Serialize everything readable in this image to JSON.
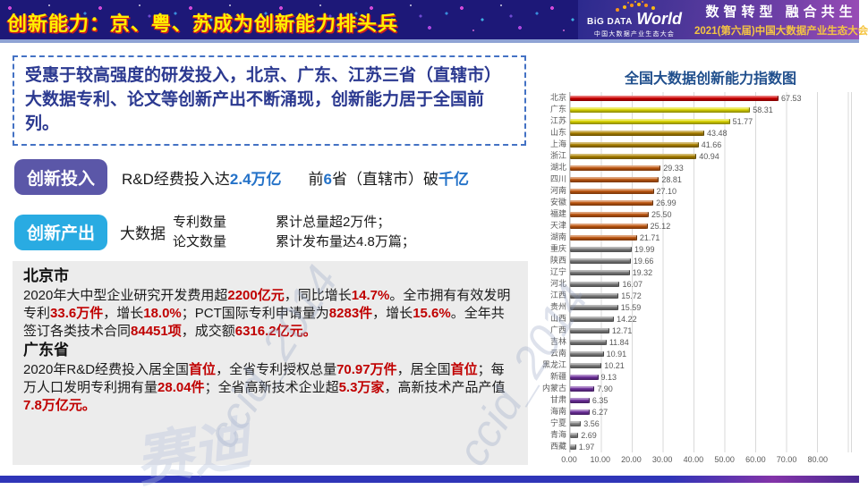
{
  "header": {
    "title": "创新能力：京、粤、苏成为创新能力排头兵",
    "logo": {
      "big": "BiG DATA",
      "world": "World",
      "sub": "中国大数据产业生态大会"
    },
    "slogan": "数智转型 融合共生",
    "event": "2021(第六届)中国大数据产业生态大会"
  },
  "intro": "受惠于较高强度的研发投入，北京、广东、江苏三省（直辖市）大数据专利、论文等创新产出不断涌现，创新能力居于全国前列。",
  "invest": {
    "badge": "创新投入",
    "line1": [
      {
        "t": "R&D经费投入达"
      },
      {
        "t": "2.4万亿",
        "c": "bl"
      }
    ],
    "line2": [
      {
        "t": "前"
      },
      {
        "t": "6",
        "c": "bl"
      },
      {
        "t": "省（直辖市）破"
      },
      {
        "t": "千亿",
        "c": "bl"
      }
    ]
  },
  "output": {
    "badge": "创新产出",
    "prefix": "大数据",
    "items": [
      "专利数量",
      "论文数量"
    ],
    "results": [
      "累计总量超2万件；",
      "累计发布量达4.8万篇；"
    ]
  },
  "details": {
    "beijing": {
      "title": "北京市",
      "body": [
        {
          "t": "2020年大中型企业研究开发费用超"
        },
        {
          "t": "2200亿元",
          "c": "hl"
        },
        {
          "t": "，同比增长"
        },
        {
          "t": "14.7%",
          "c": "hl"
        },
        {
          "t": "。全市拥有有效发明专利"
        },
        {
          "t": "33.6万件",
          "c": "hl"
        },
        {
          "t": "，增长"
        },
        {
          "t": "18.0%",
          "c": "hl"
        },
        {
          "t": "；PCT国际专利申请量为"
        },
        {
          "t": "8283件",
          "c": "hl"
        },
        {
          "t": "，增长"
        },
        {
          "t": "15.6%",
          "c": "hl"
        },
        {
          "t": "。全年共签订各类技术合同"
        },
        {
          "t": "84451项",
          "c": "hl"
        },
        {
          "t": "，成交额"
        },
        {
          "t": "6316.2亿元。",
          "c": "hl"
        }
      ]
    },
    "guangdong": {
      "title": "广东省",
      "body": [
        {
          "t": "2020年R&D经费投入居全国"
        },
        {
          "t": "首位",
          "c": "hl"
        },
        {
          "t": "，全省专利授权总量"
        },
        {
          "t": "70.97万件",
          "c": "hl"
        },
        {
          "t": "，居全国"
        },
        {
          "t": "首位",
          "c": "hl"
        },
        {
          "t": "；每万人口发明专利拥有量"
        },
        {
          "t": "28.04件",
          "c": "hl"
        },
        {
          "t": "；全省高新技术企业超"
        },
        {
          "t": "5.3万家",
          "c": "hl"
        },
        {
          "t": "，高新技术产品产值"
        },
        {
          "t": "7.8万亿元。",
          "c": "hl"
        }
      ]
    }
  },
  "chart_data": {
    "type": "bar",
    "orientation": "horizontal",
    "title": "全国大数据创新能力指数图",
    "xlabel": "",
    "ylabel": "",
    "xlim": [
      0,
      91
    ],
    "grid": true,
    "x_ticks": [
      "0.00",
      "10.00",
      "20.00",
      "30.00",
      "40.00",
      "50.00",
      "60.00",
      "70.00",
      "80.00"
    ],
    "items": [
      {
        "name": "北京",
        "value": 67.53,
        "color": "#D40000"
      },
      {
        "name": "广东",
        "value": 58.31,
        "color": "#E2DC00"
      },
      {
        "name": "江苏",
        "value": 51.77,
        "color": "#E2DC00"
      },
      {
        "name": "山东",
        "value": 43.48,
        "color": "#B08500"
      },
      {
        "name": "上海",
        "value": 41.66,
        "color": "#B08500"
      },
      {
        "name": "浙江",
        "value": 40.94,
        "color": "#B08500"
      },
      {
        "name": "湖北",
        "value": 29.33,
        "color": "#C55A11"
      },
      {
        "name": "四川",
        "value": 28.81,
        "color": "#C55A11"
      },
      {
        "name": "河南",
        "value": 27.1,
        "color": "#C55A11"
      },
      {
        "name": "安徽",
        "value": 26.99,
        "color": "#C55A11"
      },
      {
        "name": "福建",
        "value": 25.5,
        "color": "#C55A11"
      },
      {
        "name": "天津",
        "value": 25.12,
        "color": "#C55A11"
      },
      {
        "name": "湖南",
        "value": 21.71,
        "color": "#C55A11"
      },
      {
        "name": "重庆",
        "value": 19.99,
        "color": "#7F7F7F"
      },
      {
        "name": "陕西",
        "value": 19.66,
        "color": "#7F7F7F"
      },
      {
        "name": "辽宁",
        "value": 19.32,
        "color": "#7F7F7F"
      },
      {
        "name": "河北",
        "value": 16.07,
        "color": "#7F7F7F"
      },
      {
        "name": "江西",
        "value": 15.72,
        "color": "#7F7F7F"
      },
      {
        "name": "贵州",
        "value": 15.59,
        "color": "#7F7F7F"
      },
      {
        "name": "山西",
        "value": 14.22,
        "color": "#7F7F7F"
      },
      {
        "name": "广西",
        "value": 12.71,
        "color": "#7F7F7F"
      },
      {
        "name": "吉林",
        "value": 11.84,
        "color": "#7F7F7F"
      },
      {
        "name": "云南",
        "value": 10.91,
        "color": "#7F7F7F"
      },
      {
        "name": "黑龙江",
        "value": 10.21,
        "color": "#7F7F7F"
      },
      {
        "name": "新疆",
        "value": 9.13,
        "color": "#7030A0"
      },
      {
        "name": "内蒙古",
        "value": 7.9,
        "color": "#7030A0"
      },
      {
        "name": "甘肃",
        "value": 6.35,
        "color": "#7030A0"
      },
      {
        "name": "海南",
        "value": 6.27,
        "color": "#7030A0"
      },
      {
        "name": "宁夏",
        "value": 3.56,
        "color": "#8C8C8C"
      },
      {
        "name": "青海",
        "value": 2.69,
        "color": "#8C8C8C"
      },
      {
        "name": "西藏",
        "value": 1.97,
        "color": "#8C8C8C"
      }
    ]
  },
  "watermarks": {
    "wm1": "ccid_2014",
    "wm2": "ccid_2014",
    "wm3": "赛迪"
  },
  "colors": {
    "accent_blue": "#2472c8",
    "highlight_red": "#c00000",
    "badge_invest": "#5b57a8",
    "badge_output": "#29abe2",
    "title_yellow": "#ffef00"
  }
}
